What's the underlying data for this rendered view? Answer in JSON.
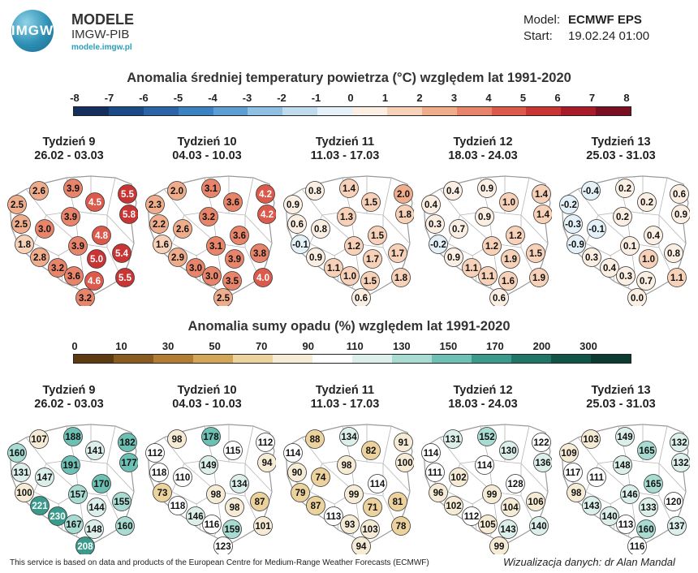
{
  "header": {
    "logo_text": "IMGW",
    "brand_title": "MODELE",
    "brand_subtitle": "IMGW-PIB",
    "brand_url": "modele.imgw.pl",
    "model_label": "Model:",
    "model_value": "ECMWF EPS",
    "start_label": "Start:",
    "start_value": "19.02.24 01:00"
  },
  "temperature": {
    "title": "Anomalia średniej temperatury powietrza (°C) względem lat 1991-2020",
    "ticks": [
      "-8",
      "-7",
      "-6",
      "-5",
      "-4",
      "-3",
      "-2",
      "-1",
      "0",
      "1",
      "2",
      "3",
      "4",
      "5",
      "6",
      "7",
      "8"
    ],
    "colors": [
      "#142f5e",
      "#1c4a86",
      "#2b65a8",
      "#3c82c3",
      "#5d9fd3",
      "#8fbfe2",
      "#bfdcef",
      "#e4f1f8",
      "#fbeee2",
      "#f7d2b8",
      "#f0ad8c",
      "#e8846a",
      "#dc5a4b",
      "#c93535",
      "#a81c2a",
      "#7a0f22"
    ],
    "weeks": [
      {
        "title": "Tydzień 9",
        "dates": "26.02 - 03.03",
        "values": [
          "2.6",
          "3.9",
          "2.5",
          "4.5",
          "5.5",
          "5.8",
          "2.5",
          "3.9",
          "3.0",
          "1.8",
          "4.8",
          "3.9",
          "5.4",
          "2.8",
          "5.0",
          "3.2",
          "3.6",
          "4.6",
          "5.5",
          "3.2"
        ]
      },
      {
        "title": "Tydzień 10",
        "dates": "04.03 - 10.03",
        "values": [
          "2.0",
          "3.1",
          "2.3",
          "3.6",
          "4.2",
          "4.2",
          "2.2",
          "3.2",
          "2.6",
          "1.6",
          "3.6",
          "3.1",
          "3.8",
          "2.9",
          "3.9",
          "3.0",
          "3.0",
          "3.5",
          "4.0",
          "2.5"
        ]
      },
      {
        "title": "Tydzień 11",
        "dates": "11.03 - 17.03",
        "values": [
          "0.8",
          "1.4",
          "0.9",
          "1.5",
          "2.0",
          "1.8",
          "0.6",
          "1.3",
          "0.8",
          "-0.1",
          "1.5",
          "1.2",
          "1.7",
          "0.9",
          "1.7",
          "1.1",
          "1.0",
          "1.5",
          "1.8",
          "0.6"
        ]
      },
      {
        "title": "Tydzień 12",
        "dates": "18.03 - 24.03",
        "values": [
          "0.4",
          "0.9",
          "0.4",
          "1.0",
          "1.4",
          "1.4",
          "0.3",
          "0.9",
          "0.7",
          "-0.2",
          "1.2",
          "1.2",
          "1.5",
          "0.9",
          "1.9",
          "1.1",
          "1.1",
          "1.6",
          "1.9",
          "0.6"
        ]
      },
      {
        "title": "Tydzień 13",
        "dates": "25.03 - 31.03",
        "values": [
          "-0.4",
          "0.2",
          "-0.2",
          "0.2",
          "0.6",
          "0.9",
          "-0.3",
          "0.2",
          "-0.1",
          "-0.9",
          "0.4",
          "0.1",
          "0.8",
          "0.3",
          "1.0",
          "0.4",
          "0.3",
          "0.7",
          "1.1",
          "0.0"
        ]
      }
    ]
  },
  "precipitation": {
    "title": "Anomalia sumy opadu (%) względem lat 1991-2020",
    "ticks": [
      "0",
      "10",
      "30",
      "50",
      "70",
      "90",
      "110",
      "130",
      "150",
      "170",
      "200",
      "300"
    ],
    "colors": [
      "#5e3a10",
      "#8a5b1e",
      "#b27d32",
      "#d3a557",
      "#ecd29c",
      "#f6ecd6",
      "#ffffff",
      "#dcefea",
      "#a8dbd2",
      "#6cc0b4",
      "#3a9a8b",
      "#1f7566",
      "#0f5446",
      "#0a3a30",
      "#4a1fbf"
    ],
    "weeks": [
      {
        "title": "Tydzień 9",
        "dates": "26.02 - 03.03",
        "values": [
          "107",
          "188",
          "160",
          "141",
          "182",
          "177",
          "131",
          "191",
          "147",
          "100",
          "170",
          "157",
          "155",
          "221",
          "144",
          "230",
          "167",
          "148",
          "160",
          "208"
        ]
      },
      {
        "title": "Tydzień 10",
        "dates": "04.03 - 10.03",
        "values": [
          "98",
          "178",
          "112",
          "115",
          "112",
          "94",
          "118",
          "149",
          "110",
          "73",
          "134",
          "98",
          "87",
          "118",
          "98",
          "146",
          "116",
          "159",
          "101",
          "123"
        ]
      },
      {
        "title": "Tydzień 11",
        "dates": "11.03 - 17.03",
        "values": [
          "88",
          "134",
          "114",
          "82",
          "91",
          "100",
          "90",
          "98",
          "74",
          "79",
          "114",
          "99",
          "81",
          "87",
          "71",
          "113",
          "93",
          "103",
          "78",
          "94"
        ]
      },
      {
        "title": "Tydzień 12",
        "dates": "18.03 - 24.03",
        "values": [
          "131",
          "152",
          "114",
          "130",
          "122",
          "136",
          "111",
          "114",
          "102",
          "96",
          "128",
          "99",
          "106",
          "102",
          "104",
          "112",
          "105",
          "143",
          "140",
          "99"
        ]
      },
      {
        "title": "Tydzień 13",
        "dates": "25.03 - 31.03",
        "values": [
          "103",
          "149",
          "109",
          "165",
          "132",
          "132",
          "117",
          "148",
          "111",
          "98",
          "165",
          "146",
          "120",
          "143",
          "133",
          "140",
          "113",
          "160",
          "137",
          "116"
        ]
      }
    ]
  },
  "footer": {
    "disclaimer": "This service is based on data and products of the European Centre for Medium-Range Weather Forecasts (ECMWF)",
    "credit": "Wizualizacja danych: dr Alan Mandal"
  }
}
